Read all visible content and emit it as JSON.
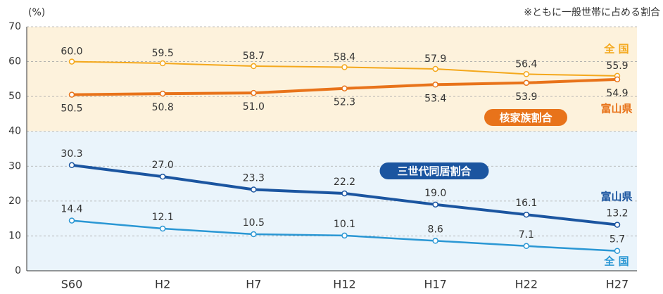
{
  "chart_data": {
    "type": "line",
    "y_unit": "(%)",
    "note": "※ともに一般世帯に占める割合",
    "annotations": [
      "核家族割合",
      "三世代同居割合"
    ],
    "categories": [
      "S60",
      "H2",
      "H7",
      "H12",
      "H17",
      "H22",
      "H27"
    ],
    "series": [
      {
        "name": "全 国",
        "group": "核家族割合",
        "color": "#f4a81c",
        "values": [
          60.0,
          59.5,
          58.7,
          58.4,
          57.9,
          56.4,
          55.9
        ],
        "value_labels": [
          "60.0",
          "59.5",
          "58.7",
          "58.4",
          "57.9",
          "56.4",
          "55.9"
        ]
      },
      {
        "name": "富山県",
        "group": "核家族割合",
        "color": "#e8731a",
        "values": [
          50.5,
          50.8,
          51.0,
          52.3,
          53.4,
          53.9,
          54.9
        ],
        "value_labels": [
          "50.5",
          "50.8",
          "51.0",
          "52.3",
          "53.4",
          "53.9",
          "54.9"
        ]
      },
      {
        "name": "富山県",
        "group": "三世代同居割合",
        "color": "#1b55a0",
        "values": [
          30.3,
          27.0,
          23.3,
          22.2,
          19.0,
          16.1,
          13.2
        ],
        "value_labels": [
          "30.3",
          "27.0",
          "23.3",
          "22.2",
          "19.0",
          "16.1",
          "13.2"
        ]
      },
      {
        "name": "全 国",
        "group": "三世代同居割合",
        "color": "#2a97d4",
        "values": [
          14.4,
          12.1,
          10.5,
          10.1,
          8.6,
          7.1,
          5.7
        ],
        "value_labels": [
          "14.4",
          "12.1",
          "10.5",
          "10.1",
          "8.6",
          "7.1",
          "5.7"
        ]
      }
    ],
    "ylim": [
      0,
      70
    ],
    "yticks": [
      0,
      10,
      20,
      30,
      40,
      50,
      60,
      70
    ],
    "grid": true
  }
}
